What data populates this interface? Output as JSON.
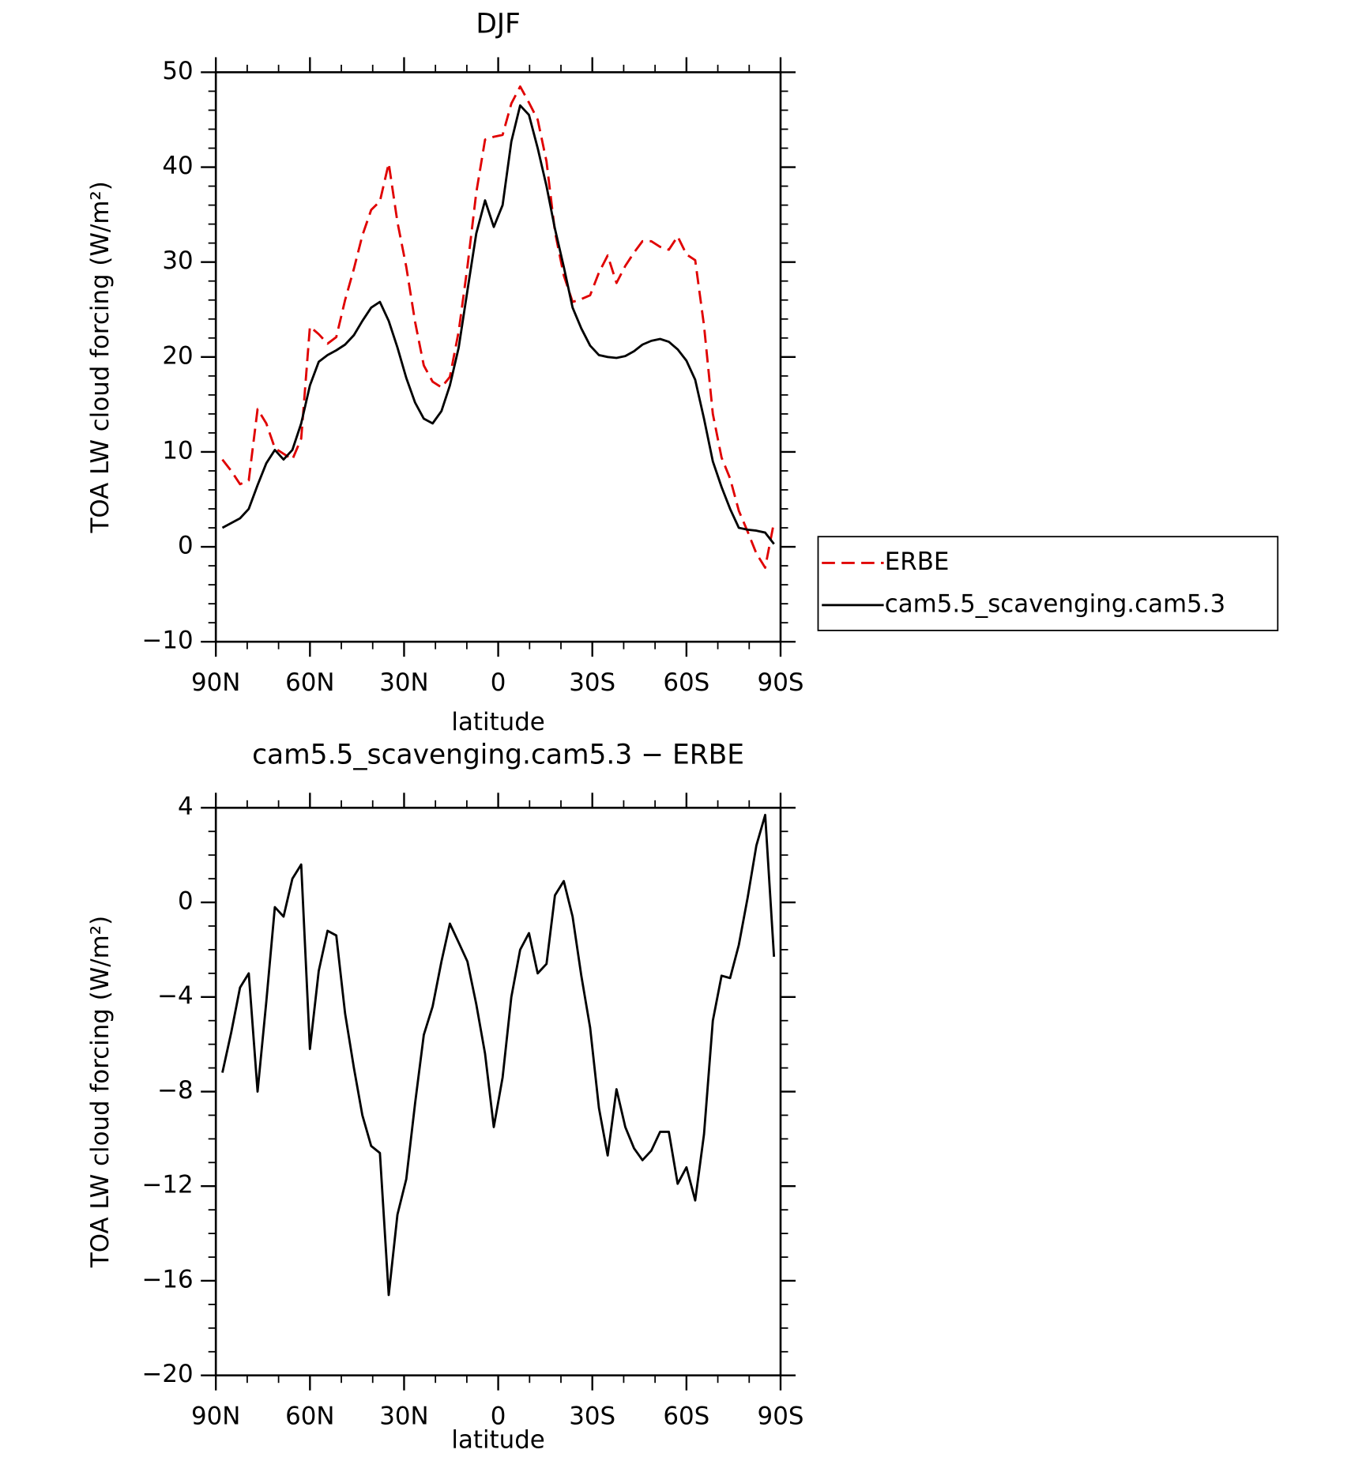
{
  "chart_data": [
    {
      "type": "line",
      "title": "DJF",
      "xlabel": "latitude",
      "ylabel": "TOA LW cloud forcing (W/m²)",
      "x": [
        87.9,
        85.1,
        82.3,
        79.5,
        76.7,
        73.9,
        71.2,
        68.4,
        65.6,
        62.8,
        60.0,
        57.2,
        54.4,
        51.6,
        48.8,
        46.0,
        43.3,
        40.5,
        37.7,
        34.9,
        32.1,
        29.3,
        26.5,
        23.7,
        20.9,
        18.1,
        15.4,
        12.6,
        9.8,
        7.0,
        4.2,
        1.4,
        -1.4,
        -4.2,
        -7.0,
        -9.8,
        -12.6,
        -15.4,
        -18.1,
        -20.9,
        -23.7,
        -26.5,
        -29.3,
        -32.1,
        -34.9,
        -37.7,
        -40.5,
        -43.3,
        -46.0,
        -48.8,
        -51.6,
        -54.4,
        -57.2,
        -60.0,
        -62.8,
        -65.6,
        -68.4,
        -71.2,
        -73.9,
        -76.7,
        -79.5,
        -82.3,
        -85.1,
        -87.9
      ],
      "series": [
        {
          "name": "ERBE",
          "color": "#e00000",
          "linestyle": "dashed",
          "values": [
            9.2,
            8.0,
            6.6,
            7.0,
            14.5,
            13.0,
            10.4,
            9.8,
            9.2,
            11.4,
            23.2,
            22.4,
            21.4,
            22.1,
            26.0,
            29.3,
            32.8,
            35.5,
            36.4,
            40.4,
            34.2,
            29.5,
            23.7,
            19.1,
            17.4,
            16.8,
            17.9,
            22.7,
            29.5,
            37.3,
            42.9,
            43.2,
            43.4,
            46.7,
            48.5,
            46.8,
            45.0,
            40.6,
            33.2,
            28.6,
            25.8,
            26.1,
            26.5,
            28.9,
            30.7,
            27.8,
            29.6,
            31.0,
            32.2,
            32.2,
            31.6,
            31.3,
            32.7,
            30.8,
            30.2,
            23.3,
            14.0,
            9.4,
            7.2,
            3.8,
            1.6,
            -0.7,
            -2.2,
            2.6
          ]
        },
        {
          "name": "cam5.5_scavenging.cam5.3",
          "color": "#000000",
          "linestyle": "solid",
          "values": [
            2.0,
            2.5,
            3.0,
            4.0,
            6.5,
            8.8,
            10.2,
            9.2,
            10.2,
            13.0,
            17.0,
            19.5,
            20.2,
            20.7,
            21.3,
            22.3,
            23.8,
            25.2,
            25.8,
            23.8,
            21.0,
            17.8,
            15.2,
            13.5,
            13.0,
            14.3,
            17.0,
            21.0,
            27.0,
            33.0,
            36.5,
            33.7,
            36.0,
            42.7,
            46.5,
            45.5,
            42.0,
            38.0,
            33.5,
            29.5,
            25.2,
            23.0,
            21.2,
            20.2,
            20.0,
            19.9,
            20.1,
            20.6,
            21.3,
            21.7,
            21.9,
            21.6,
            20.8,
            19.6,
            17.6,
            13.5,
            9.0,
            6.3,
            4.0,
            2.0,
            1.8,
            1.7,
            1.5,
            0.3
          ]
        }
      ],
      "xlim": [
        90,
        -90
      ],
      "xticks": [
        {
          "value": 90,
          "label": "90N"
        },
        {
          "value": 60,
          "label": "60N"
        },
        {
          "value": 30,
          "label": "30N"
        },
        0,
        {
          "value": -30,
          "label": "30S"
        },
        {
          "value": -60,
          "label": "60S"
        },
        {
          "value": -90,
          "label": "90S"
        }
      ],
      "ylim": [
        -10,
        50
      ],
      "yticks": [
        {
          "value": -10,
          "label": "−10"
        },
        0,
        10,
        20,
        30,
        40,
        50
      ],
      "legend": "right"
    },
    {
      "type": "line",
      "title": "cam5.5_scavenging.cam5.3 − ERBE",
      "xlabel": "latitude",
      "ylabel": "TOA LW cloud forcing (W/m²)",
      "x": [
        87.9,
        85.1,
        82.3,
        79.5,
        76.7,
        73.9,
        71.2,
        68.4,
        65.6,
        62.8,
        60.0,
        57.2,
        54.4,
        51.6,
        48.8,
        46.0,
        43.3,
        40.5,
        37.7,
        34.9,
        32.1,
        29.3,
        26.5,
        23.7,
        20.9,
        18.1,
        15.4,
        12.6,
        9.8,
        7.0,
        4.2,
        1.4,
        -1.4,
        -4.2,
        -7.0,
        -9.8,
        -12.6,
        -15.4,
        -18.1,
        -20.9,
        -23.7,
        -26.5,
        -29.3,
        -32.1,
        -34.9,
        -37.7,
        -40.5,
        -43.3,
        -46.0,
        -48.8,
        -51.6,
        -54.4,
        -57.2,
        -60.0,
        -62.8,
        -65.6,
        -68.4,
        -71.2,
        -73.9,
        -76.7,
        -79.5,
        -82.3,
        -85.1,
        -87.9
      ],
      "series": [
        {
          "color": "#000000",
          "linestyle": "solid",
          "values": [
            -7.2,
            -5.5,
            -3.6,
            -3.0,
            -8.0,
            -4.2,
            -0.2,
            -0.6,
            1.0,
            1.6,
            -6.2,
            -2.9,
            -1.2,
            -1.4,
            -4.7,
            -7.0,
            -9.0,
            -10.3,
            -10.6,
            -16.6,
            -13.2,
            -11.7,
            -8.5,
            -5.6,
            -4.4,
            -2.5,
            -0.9,
            -1.7,
            -2.5,
            -4.3,
            -6.4,
            -9.5,
            -7.4,
            -4.0,
            -2.0,
            -1.3,
            -3.0,
            -2.6,
            0.3,
            0.9,
            -0.6,
            -3.1,
            -5.3,
            -8.7,
            -10.7,
            -7.9,
            -9.5,
            -10.4,
            -10.9,
            -10.5,
            -9.7,
            -9.7,
            -11.9,
            -11.2,
            -12.6,
            -9.8,
            -5.0,
            -3.1,
            -3.2,
            -1.8,
            0.2,
            2.4,
            3.7,
            -2.3
          ]
        }
      ],
      "xlim": [
        90,
        -90
      ],
      "xticks": [
        {
          "value": 90,
          "label": "90N"
        },
        {
          "value": 60,
          "label": "60N"
        },
        {
          "value": 30,
          "label": "30N"
        },
        0,
        {
          "value": -30,
          "label": "30S"
        },
        {
          "value": -60,
          "label": "60S"
        },
        {
          "value": -90,
          "label": "90S"
        }
      ],
      "ylim": [
        -20,
        4
      ],
      "yticks": [
        {
          "value": -20,
          "label": "−20"
        },
        {
          "value": -16,
          "label": "−16"
        },
        {
          "value": -12,
          "label": "−12"
        },
        {
          "value": -8,
          "label": "−8"
        },
        {
          "value": -4,
          "label": "−4"
        },
        0,
        4
      ]
    }
  ]
}
